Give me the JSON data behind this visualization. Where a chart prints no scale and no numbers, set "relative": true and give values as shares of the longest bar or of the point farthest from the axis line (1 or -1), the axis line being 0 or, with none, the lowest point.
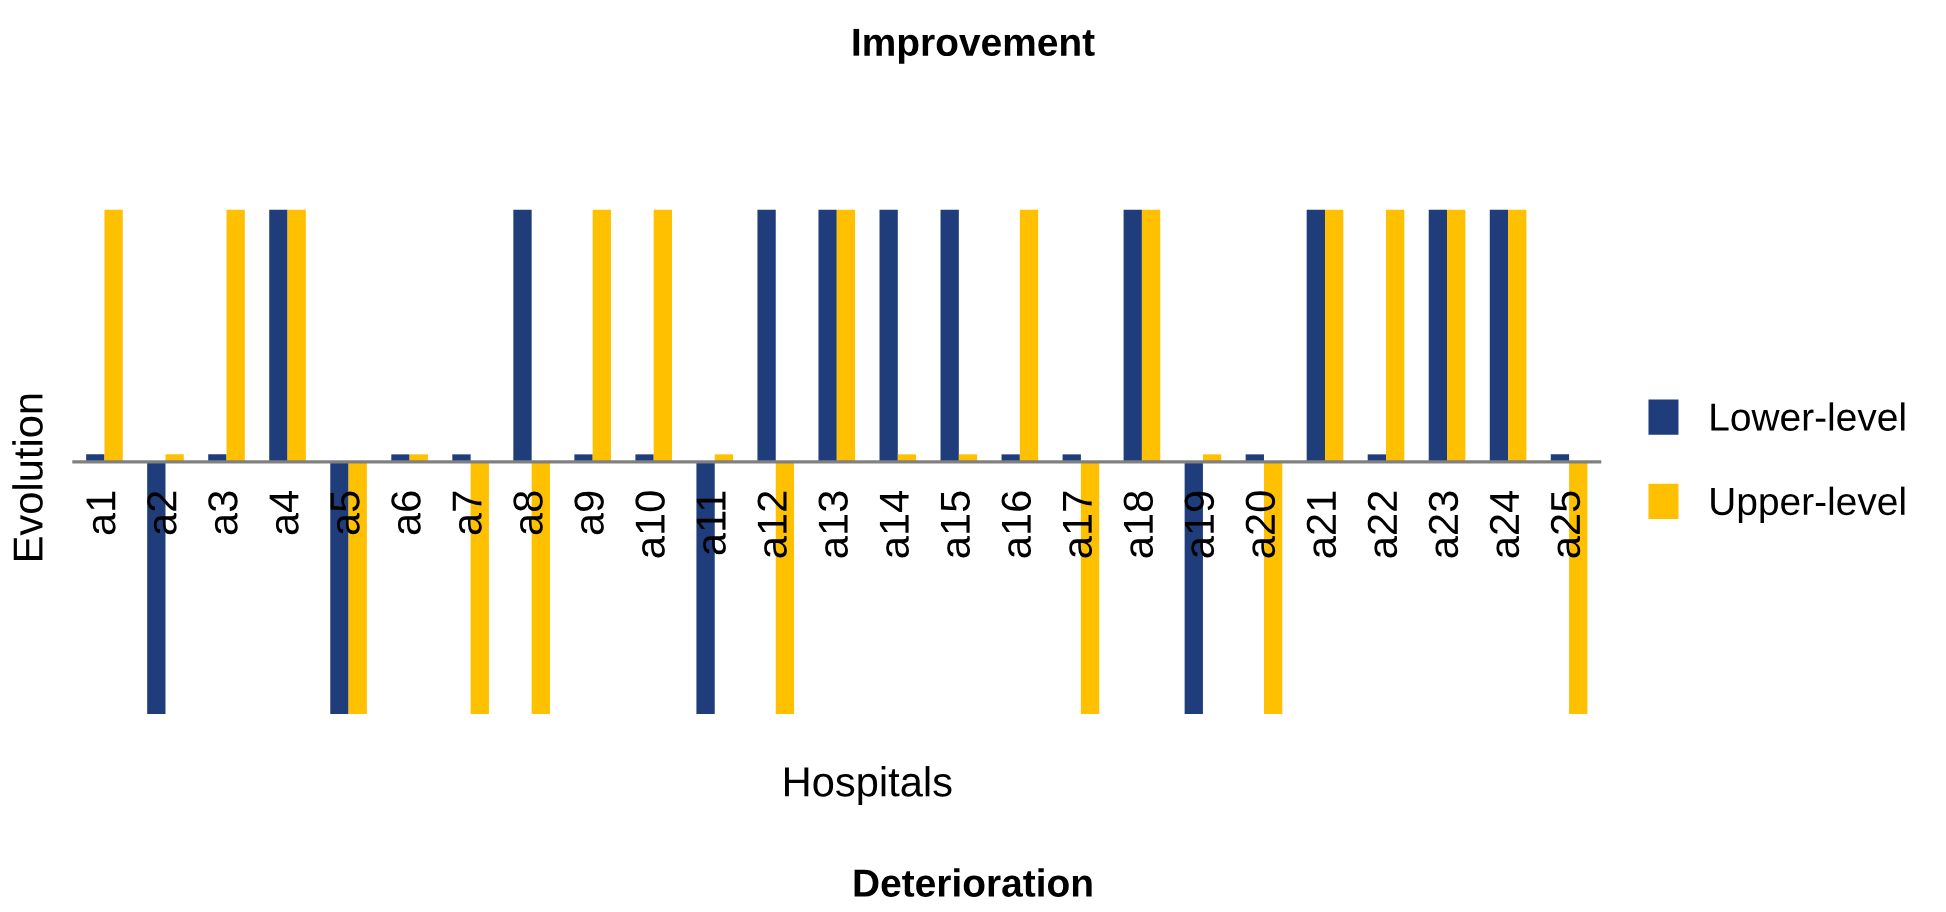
{
  "chart_data": {
    "type": "bar",
    "title": "Improvement",
    "xlabel": "Hospitals",
    "ylabel": "Evolution",
    "relative": true,
    "legend": "right",
    "grid": false,
    "annotations": [
      "Deterioration"
    ],
    "categories": [
      "a1",
      "a2",
      "a3",
      "a4",
      "a5",
      "a6",
      "a7",
      "a8",
      "a9",
      "a10",
      "a11",
      "a12",
      "a13",
      "a14",
      "a15",
      "a16",
      "a17",
      "a18",
      "a19",
      "a20",
      "a21",
      "a22",
      "a23",
      "a24",
      "a25"
    ],
    "series": [
      {
        "name": "Lower-level",
        "color": "#1f3d7a",
        "values": [
          0.03,
          -1,
          0.03,
          1,
          -1,
          0.03,
          0.03,
          1,
          0.03,
          0.03,
          -1,
          1,
          1,
          1,
          1,
          0.03,
          0.03,
          1,
          -1,
          0.03,
          1,
          0.03,
          1,
          1,
          0.03
        ]
      },
      {
        "name": "Upper-level",
        "color": "#ffc000",
        "values": [
          1,
          0.03,
          1,
          1,
          -1,
          0.03,
          -1,
          -1,
          1,
          1,
          0.03,
          -1,
          1,
          0.03,
          0.03,
          1,
          -1,
          1,
          0.03,
          -1,
          1,
          1,
          1,
          1,
          -1
        ]
      }
    ]
  }
}
